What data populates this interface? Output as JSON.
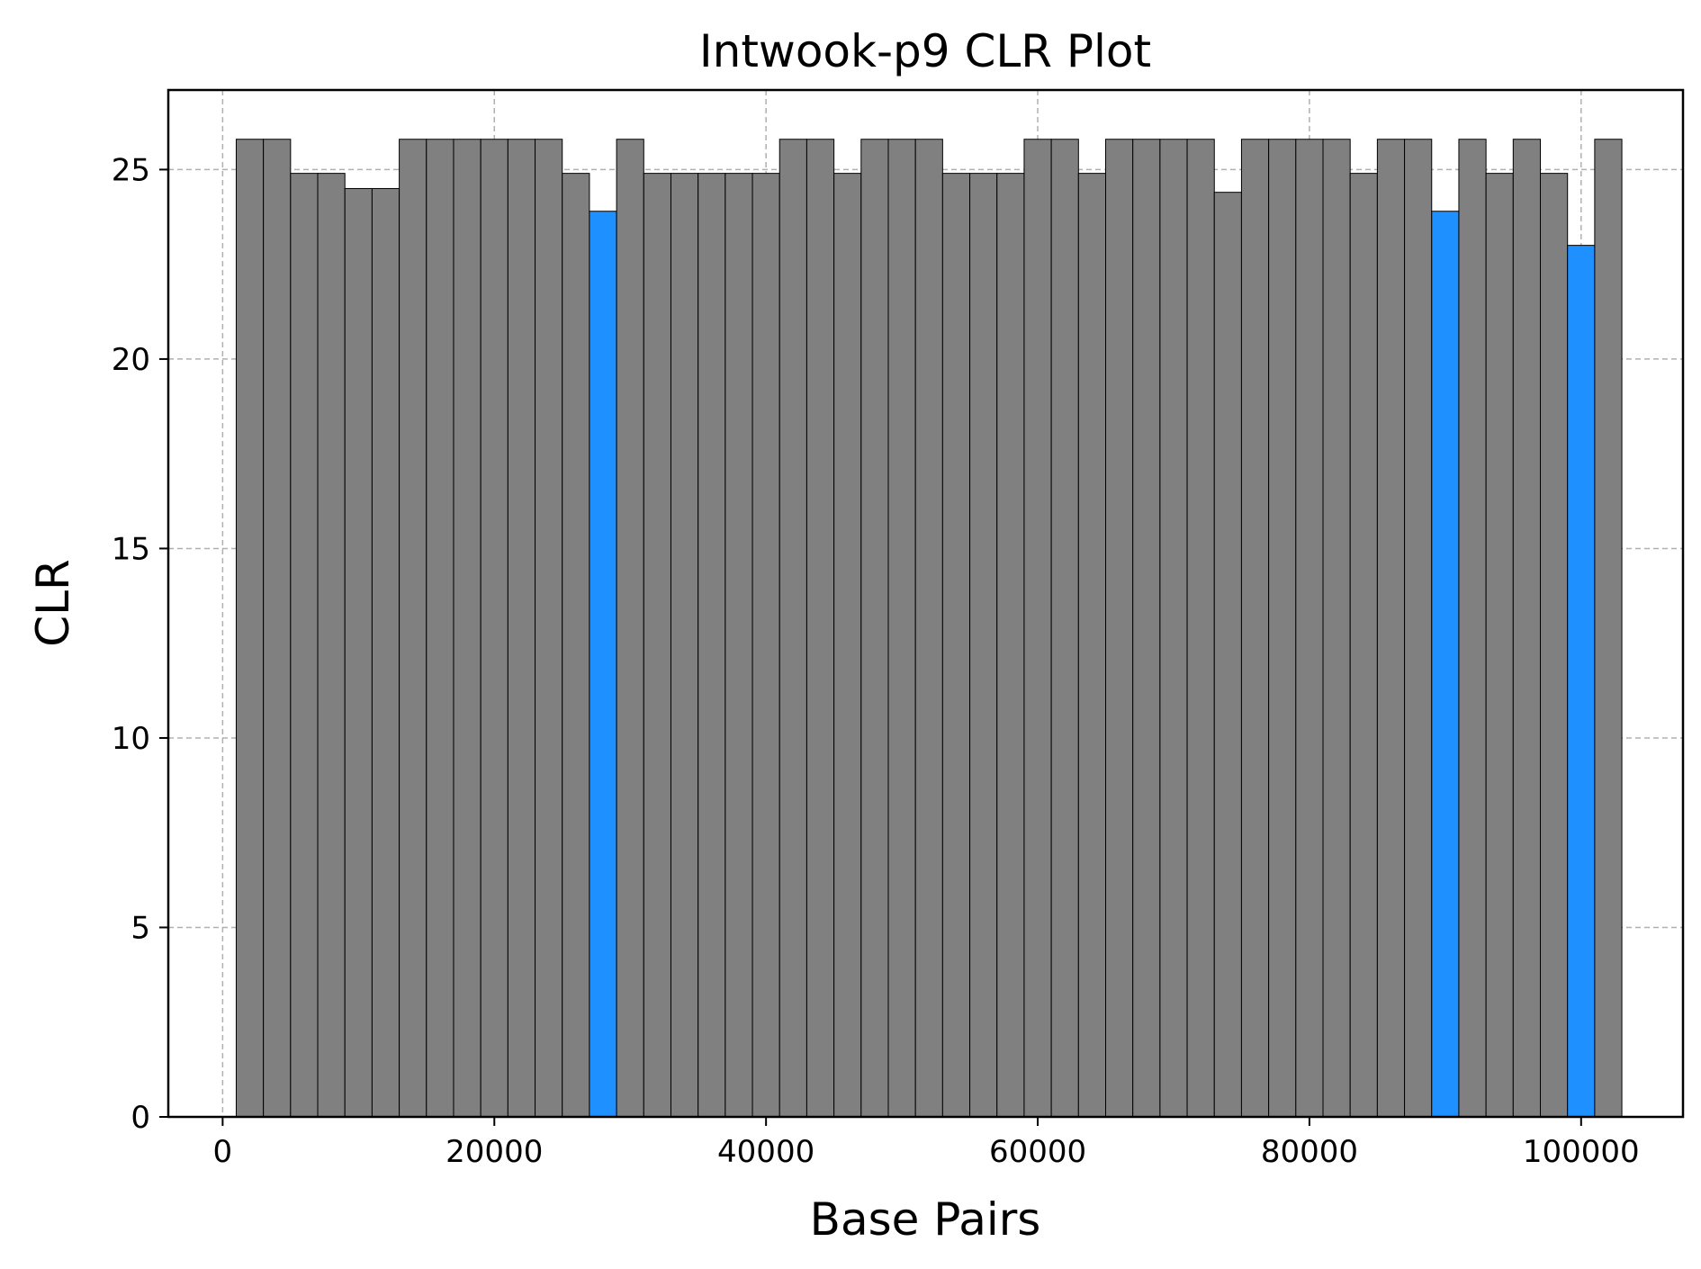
{
  "chart_data": {
    "type": "bar",
    "title": "Intwook-p9 CLR Plot",
    "xlabel": "Base Pairs",
    "ylabel": "CLR",
    "xlim": [
      -4000,
      107500
    ],
    "ylim": [
      0,
      27.1
    ],
    "xticks": [
      0,
      20000,
      40000,
      60000,
      80000,
      100000
    ],
    "yticks": [
      0,
      5,
      10,
      15,
      20,
      25
    ],
    "grid": true,
    "bin_width": 2000,
    "x": [
      2000,
      4000,
      6000,
      8000,
      10000,
      12000,
      14000,
      16000,
      18000,
      20000,
      22000,
      24000,
      26000,
      28000,
      30000,
      32000,
      34000,
      36000,
      38000,
      40000,
      42000,
      44000,
      46000,
      48000,
      50000,
      52000,
      54000,
      56000,
      58000,
      60000,
      62000,
      64000,
      66000,
      68000,
      70000,
      72000,
      74000,
      76000,
      78000,
      80000,
      82000,
      84000,
      86000,
      88000,
      90000,
      92000,
      94000,
      96000,
      98000,
      100000,
      102000
    ],
    "values": [
      25.8,
      25.8,
      24.9,
      24.9,
      24.5,
      24.5,
      25.8,
      25.8,
      25.8,
      25.8,
      25.8,
      25.8,
      24.9,
      23.9,
      25.8,
      24.9,
      24.9,
      24.9,
      24.9,
      24.9,
      25.8,
      25.8,
      24.9,
      25.8,
      25.8,
      25.8,
      24.9,
      24.9,
      24.9,
      25.8,
      25.8,
      24.9,
      25.8,
      25.8,
      25.8,
      25.8,
      24.4,
      25.8,
      25.8,
      25.8,
      25.8,
      24.9,
      25.8,
      25.8,
      23.9,
      25.8,
      24.9,
      25.8,
      24.9,
      23.0,
      25.8
    ],
    "highlighted_indices": [
      13,
      44,
      49
    ],
    "colors": {
      "default": "#808080",
      "highlight": "#1e90ff"
    }
  }
}
